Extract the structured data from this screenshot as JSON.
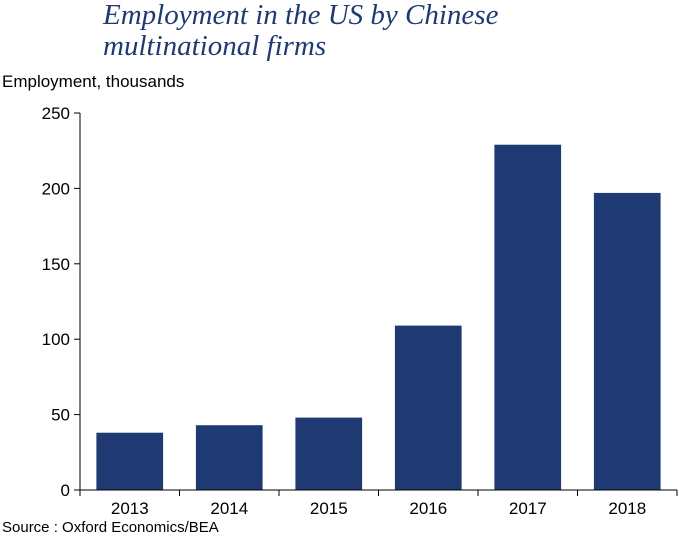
{
  "chart_data": {
    "type": "bar",
    "title": "Employment in the US by Chinese multinational firms",
    "title_lines": [
      "Employment in the US by Chinese",
      "multinational firms"
    ],
    "ylabel": "Employment, thousands",
    "xlabel": "",
    "categories": [
      "2013",
      "2014",
      "2015",
      "2016",
      "2017",
      "2018"
    ],
    "values": [
      38,
      43,
      48,
      109,
      229,
      197
    ],
    "ylim": [
      0,
      250
    ],
    "yticks": [
      0,
      50,
      100,
      150,
      200,
      250
    ],
    "bar_color": "#1f3a73",
    "grid": false,
    "legend": "none",
    "source": "Source : Oxford Economics/BEA"
  }
}
